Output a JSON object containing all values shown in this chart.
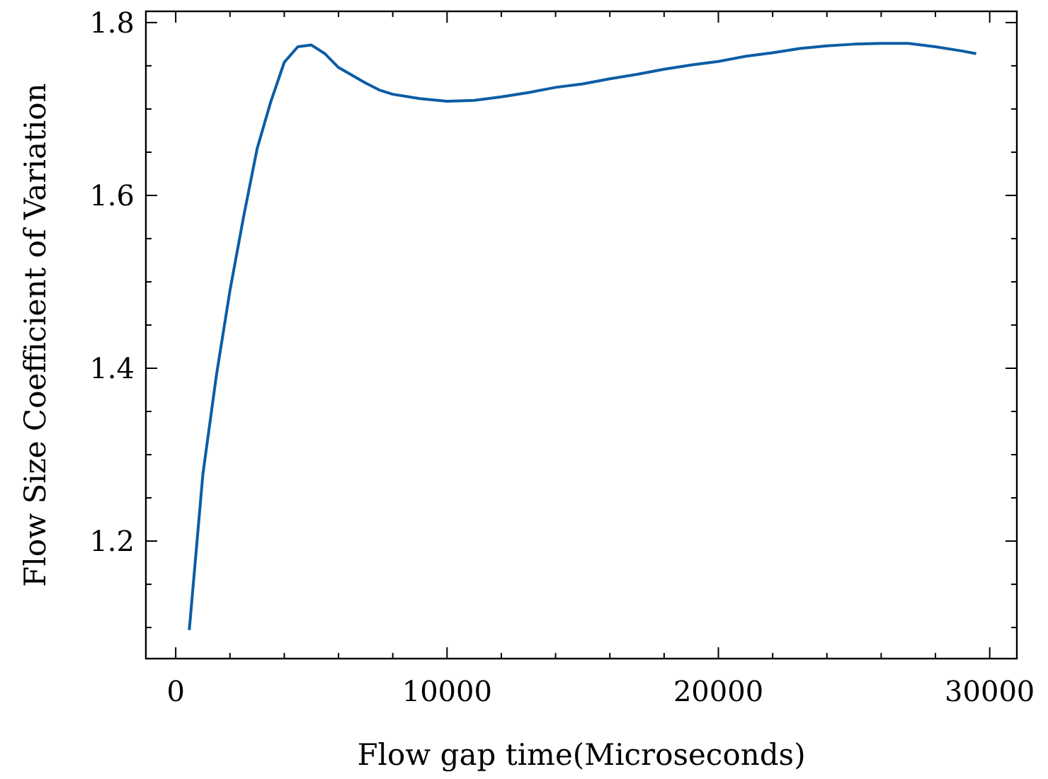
{
  "chart_data": {
    "type": "line",
    "xlabel": "Flow gap time(Microseconds)",
    "ylabel": "Flow Size Coefficient of Variation",
    "xlim": [
      -1100,
      31000
    ],
    "ylim": [
      1.064,
      1.813
    ],
    "xticks": [
      0,
      {
        "value": 2000,
        "label": null
      },
      {
        "value": 4000,
        "label": null
      },
      {
        "value": 6000,
        "label": null
      },
      {
        "value": 8000,
        "label": null
      },
      10000,
      {
        "value": 12000,
        "label": null
      },
      {
        "value": 14000,
        "label": null
      },
      {
        "value": 16000,
        "label": null
      },
      {
        "value": 18000,
        "label": null
      },
      20000,
      {
        "value": 22000,
        "label": null
      },
      {
        "value": 24000,
        "label": null
      },
      {
        "value": 26000,
        "label": null
      },
      {
        "value": 28000,
        "label": null
      },
      30000
    ],
    "yticks": [
      {
        "value": 1.1,
        "label": null
      },
      {
        "value": 1.15,
        "label": null
      },
      {
        "value": 1.2,
        "label": "1.2"
      },
      {
        "value": 1.25,
        "label": null
      },
      {
        "value": 1.3,
        "label": null
      },
      {
        "value": 1.35,
        "label": null
      },
      {
        "value": 1.4,
        "label": "1.4"
      },
      {
        "value": 1.45,
        "label": null
      },
      {
        "value": 1.5,
        "label": null
      },
      {
        "value": 1.55,
        "label": null
      },
      {
        "value": 1.6,
        "label": "1.6"
      },
      {
        "value": 1.65,
        "label": null
      },
      {
        "value": 1.7,
        "label": null
      },
      {
        "value": 1.75,
        "label": null
      },
      {
        "value": 1.8,
        "label": "1.8"
      }
    ],
    "grid": false,
    "marker": "none",
    "line_style": "solid",
    "series": [
      {
        "color": "#0c5da5",
        "x": [
          500,
          1000,
          1500,
          2000,
          2500,
          3000,
          3500,
          4000,
          4500,
          5000,
          5500,
          6000,
          7000,
          7500,
          8000,
          9000,
          10000,
          11000,
          12000,
          13000,
          14000,
          15000,
          16000,
          17000,
          18000,
          19000,
          20000,
          21000,
          22000,
          23000,
          24000,
          25000,
          26000,
          27000,
          28000,
          29000,
          29500
        ],
        "values": [
          1.097,
          1.277,
          1.392,
          1.49,
          1.575,
          1.654,
          1.708,
          1.754,
          1.772,
          1.774,
          1.764,
          1.748,
          1.73,
          1.722,
          1.717,
          1.712,
          1.709,
          1.71,
          1.714,
          1.719,
          1.725,
          1.729,
          1.735,
          1.74,
          1.746,
          1.751,
          1.755,
          1.761,
          1.765,
          1.77,
          1.773,
          1.775,
          1.776,
          1.776,
          1.772,
          1.767,
          1.764
        ]
      }
    ]
  }
}
